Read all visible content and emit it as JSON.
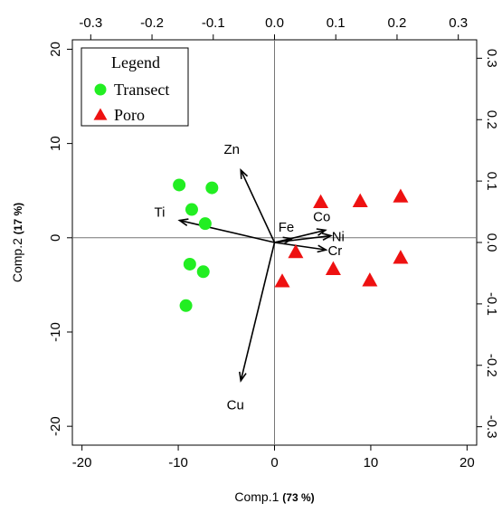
{
  "chart_data": {
    "type": "scatter",
    "title": "",
    "xlabel": "Comp.1",
    "xlabel_unit": "(73 %)",
    "ylabel": "Comp.2",
    "ylabel_unit": "(17 %)",
    "xlim": [
      -21,
      21
    ],
    "ylim": [
      -22,
      21
    ],
    "x_ticks": [
      "-20",
      "-10",
      "0",
      "10",
      "20"
    ],
    "y_ticks": [
      "-20",
      "-10",
      "0",
      "10",
      "20"
    ],
    "top_ticks": [
      "-0.3",
      "-0.2",
      "-0.1",
      "0.0",
      "0.1",
      "0.2",
      "0.3"
    ],
    "right_ticks": [
      "-0.3",
      "-0.2",
      "-0.1",
      "0.0",
      "0.1",
      "0.2",
      "0.3"
    ],
    "loading_lim": [
      -0.33,
      0.33
    ],
    "grid": false,
    "reference_lines": {
      "x": 0,
      "y": 0
    },
    "legend": {
      "title": "Legend",
      "placement": "top-left",
      "entries": [
        {
          "name": "Transect",
          "marker": "circle",
          "color": "#22ee22"
        },
        {
          "name": "Poro",
          "marker": "triangle",
          "color": "#ee1111"
        }
      ]
    },
    "series": [
      {
        "name": "Transect",
        "marker": "circle",
        "color": "#22ee22",
        "x": [
          -9.9,
          -6.5,
          -8.6,
          -7.2,
          -8.8,
          -7.4,
          -9.2
        ],
        "y": [
          5.6,
          5.3,
          3.0,
          1.5,
          -2.8,
          -3.6,
          -7.2
        ]
      },
      {
        "name": "Poro",
        "marker": "triangle",
        "color": "#ee1111",
        "x": [
          4.8,
          8.9,
          13.1,
          2.2,
          0.8,
          6.1,
          9.9,
          13.1
        ],
        "y": [
          3.8,
          3.9,
          4.4,
          -1.5,
          -4.6,
          -3.3,
          -4.5,
          -2.1
        ]
      }
    ],
    "loadings": [
      {
        "label": "Zn",
        "x": -0.055,
        "y": 0.118
      },
      {
        "label": "Ti",
        "x": -0.155,
        "y": 0.036
      },
      {
        "label": "Fe",
        "x": 0.028,
        "y": 0.006
      },
      {
        "label": "Co",
        "x": 0.083,
        "y": 0.02
      },
      {
        "label": "Ni",
        "x": 0.092,
        "y": 0.011
      },
      {
        "label": "Cr",
        "x": 0.084,
        "y": -0.012
      },
      {
        "label": "Cu",
        "x": -0.055,
        "y": -0.225
      }
    ],
    "colors": {
      "axis": "#000000",
      "arrow": "#000000"
    }
  }
}
